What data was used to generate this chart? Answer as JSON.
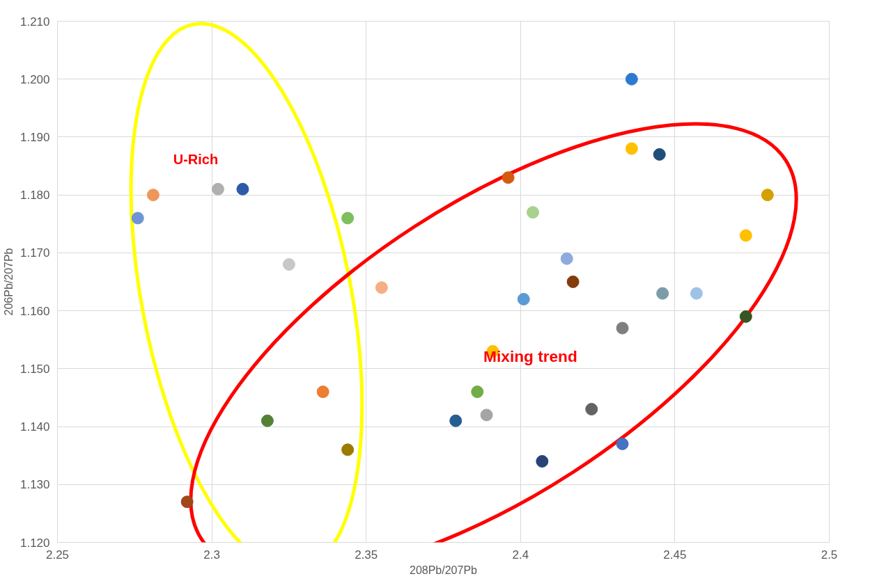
{
  "chart_data": {
    "type": "scatter",
    "xlabel": "208Pb/207Pb",
    "ylabel": "206Pb/207Pb",
    "annotations": [
      "U-Rich",
      "Mixing trend"
    ],
    "xlim": [
      2.25,
      2.5
    ],
    "xticks": [
      2.25,
      2.3,
      2.35,
      2.4,
      2.45,
      2.5
    ],
    "ylim": [
      1.12,
      1.21
    ],
    "yticks": [
      {
        "value": 1.12,
        "label": "1.120"
      },
      {
        "value": 1.13,
        "label": "1.130"
      },
      {
        "value": 1.14,
        "label": "1.140"
      },
      {
        "value": 1.15,
        "label": "1.150"
      },
      {
        "value": 1.16,
        "label": "1.160"
      },
      {
        "value": 1.17,
        "label": "1.170"
      },
      {
        "value": 1.18,
        "label": "1.180"
      },
      {
        "value": 1.19,
        "label": "1.190"
      },
      {
        "value": 1.2,
        "label": "1.200"
      },
      {
        "value": 1.21,
        "label": "1.210"
      }
    ],
    "grid": true,
    "marker": "circle",
    "x": [
      2.276,
      2.281,
      2.302,
      2.31,
      2.344,
      2.325,
      2.355,
      2.336,
      2.318,
      2.344,
      2.292,
      2.436,
      2.436,
      2.445,
      2.396,
      2.48,
      2.404,
      2.473,
      2.415,
      2.417,
      2.401,
      2.446,
      2.457,
      2.473,
      2.433,
      2.391,
      2.386,
      2.379,
      2.389,
      2.423,
      2.433,
      2.407
    ],
    "values": [
      1.176,
      1.18,
      1.181,
      1.181,
      1.176,
      1.168,
      1.164,
      1.146,
      1.141,
      1.136,
      1.127,
      1.2,
      1.188,
      1.187,
      1.183,
      1.18,
      1.177,
      1.173,
      1.169,
      1.165,
      1.162,
      1.163,
      1.163,
      1.159,
      1.157,
      1.153,
      1.146,
      1.141,
      1.142,
      1.143,
      1.137,
      1.134
    ],
    "colors": [
      "#6f95d8",
      "#f0965a",
      "#b0b0b0",
      "#2e5aa8",
      "#7cbf5c",
      "#c8c8c8",
      "#f4b084",
      "#ed7d31",
      "#548235",
      "#9c7a00",
      "#a0481a",
      "#2e7ad0",
      "#ffc000",
      "#1f4e79",
      "#d55a10",
      "#d4a000",
      "#a9d18e",
      "#ffc000",
      "#8faadc",
      "#843c0c",
      "#5b9bd5",
      "#7b9ca8",
      "#9dc3e6",
      "#375623",
      "#7f7f7f",
      "#ffc000",
      "#70ad47",
      "#255e91",
      "#a5a5a5",
      "#636363",
      "#4472c4",
      "#264478"
    ]
  }
}
